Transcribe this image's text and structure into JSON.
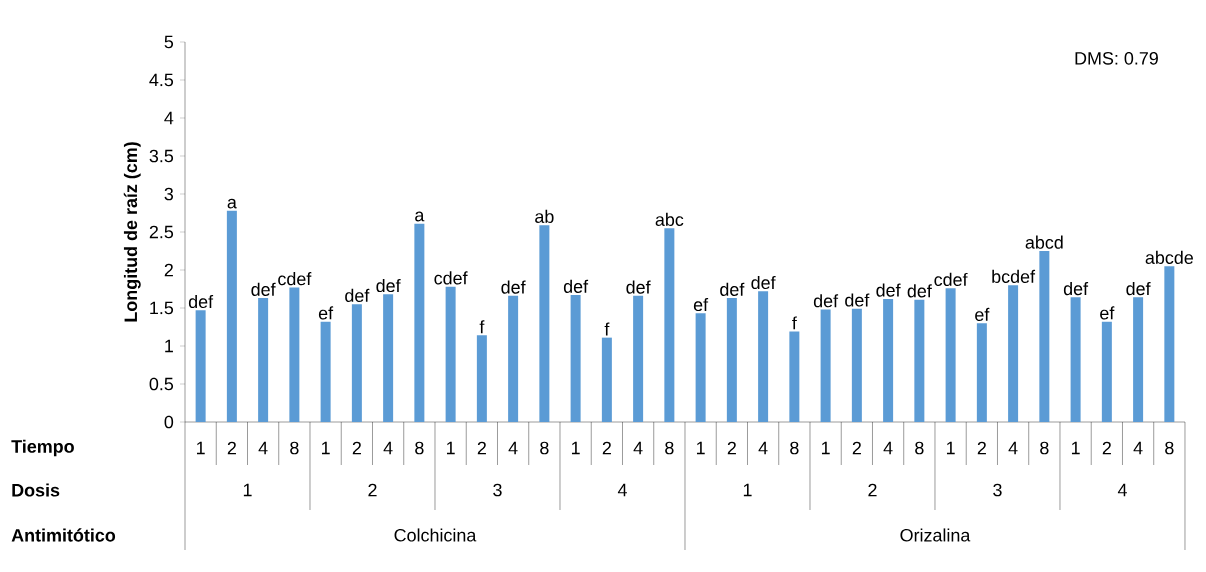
{
  "chart_data": {
    "type": "bar",
    "ylabel": "Longitud de raíz (cm)",
    "categories": [
      "1",
      "2",
      "4",
      "8",
      "1",
      "2",
      "4",
      "8",
      "1",
      "2",
      "4",
      "8",
      "1",
      "2",
      "4",
      "8",
      "1",
      "2",
      "4",
      "8",
      "1",
      "2",
      "4",
      "8",
      "1",
      "2",
      "4",
      "8",
      "1",
      "2",
      "4",
      "8"
    ],
    "values": [
      1.47,
      2.78,
      1.63,
      1.77,
      1.32,
      1.55,
      1.68,
      2.61,
      1.78,
      1.14,
      1.66,
      2.59,
      1.67,
      1.11,
      1.66,
      2.55,
      1.43,
      1.63,
      1.72,
      1.19,
      1.48,
      1.49,
      1.62,
      1.61,
      1.76,
      1.3,
      1.8,
      2.25,
      1.64,
      1.32,
      1.64,
      2.05
    ],
    "value_labels": [
      "def",
      "a",
      "def",
      "cdef",
      "ef",
      "def",
      "def",
      "a",
      "cdef",
      "f",
      "def",
      "ab",
      "def",
      "f",
      "def",
      "abc",
      "ef",
      "def",
      "def",
      "f",
      "def",
      "def",
      "def",
      "def",
      "cdef",
      "ef",
      "bcdef",
      "abcd",
      "def",
      "ef",
      "def",
      "abcde"
    ],
    "color": "#5b9bd5",
    "ylim": [
      0,
      5
    ],
    "yticks": [
      0,
      0.5,
      1,
      1.5,
      2,
      2.5,
      3,
      3.5,
      4,
      4.5,
      5
    ],
    "annotations": [
      "Tiempo",
      "Dosis",
      "Antimitótico",
      "1",
      "2",
      "3",
      "4",
      "1",
      "2",
      "3",
      "4",
      "Colchicina",
      "Orizalina",
      "DMS: 0.79"
    ]
  }
}
